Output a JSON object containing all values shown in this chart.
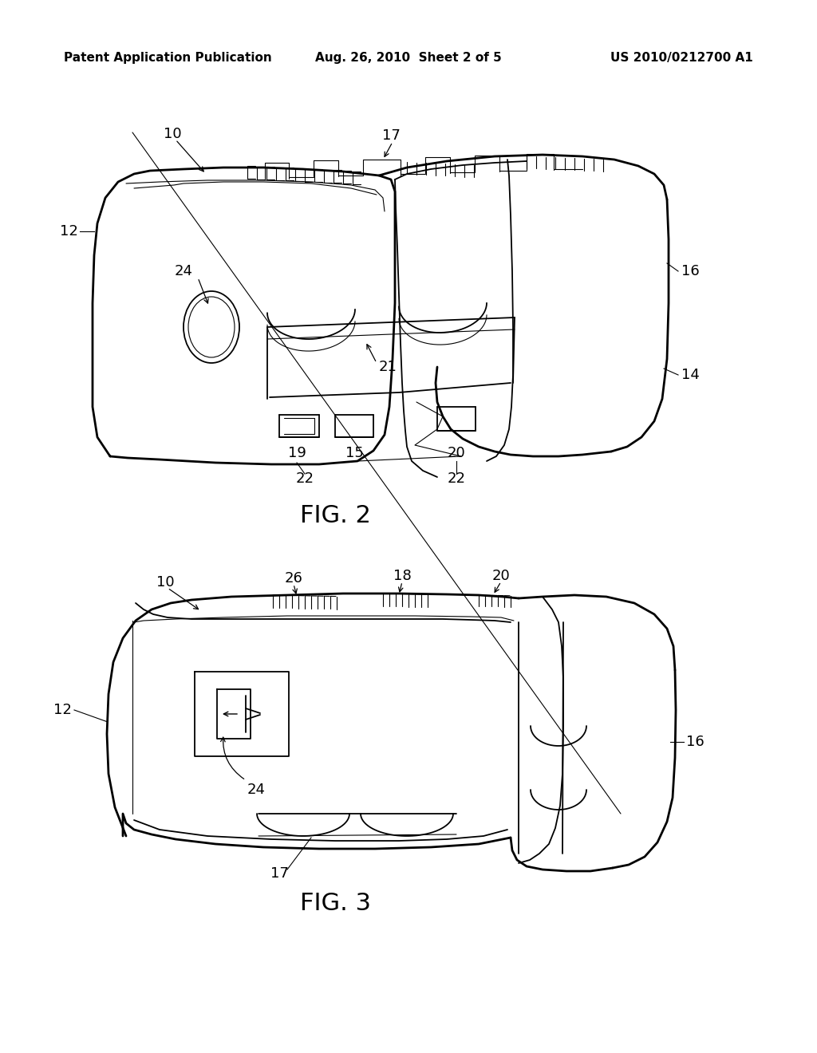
{
  "header_left": "Patent Application Publication",
  "header_center": "Aug. 26, 2010  Sheet 2 of 5",
  "header_right": "US 2010/0212700 A1",
  "fig2_label": "FIG. 2",
  "fig3_label": "FIG. 3",
  "bg_color": "#ffffff",
  "line_color": "#000000",
  "header_fontsize": 11,
  "fig_label_fontsize": 22,
  "ann_fs": 13
}
